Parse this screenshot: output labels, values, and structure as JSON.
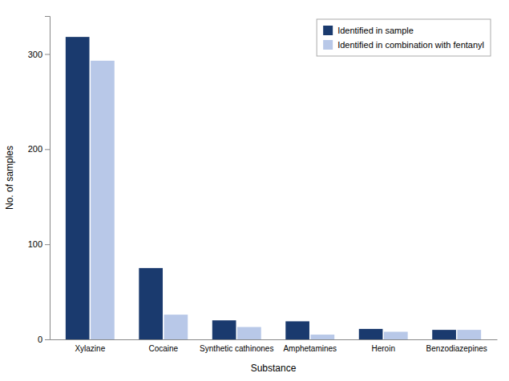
{
  "chart_data": {
    "type": "bar",
    "categories": [
      "Xylazine",
      "Cocaine",
      "Synthetic cathinones",
      "Amphetamines",
      "Heroin",
      "Benzodiazepines"
    ],
    "series": [
      {
        "name": "Identified in sample",
        "color": "#1a3a6e",
        "values": [
          318,
          75,
          20,
          19,
          11,
          10
        ]
      },
      {
        "name": "Identified in combination with fentanyl",
        "color": "#b8c8e8",
        "values": [
          293,
          26,
          13,
          5,
          8,
          10
        ]
      }
    ],
    "xlabel": "Substance",
    "ylabel": "No. of samples",
    "ylim": [
      0,
      340
    ],
    "yticks": [
      0,
      100,
      200,
      300
    ],
    "legend": "upper-right",
    "grid": false
  }
}
